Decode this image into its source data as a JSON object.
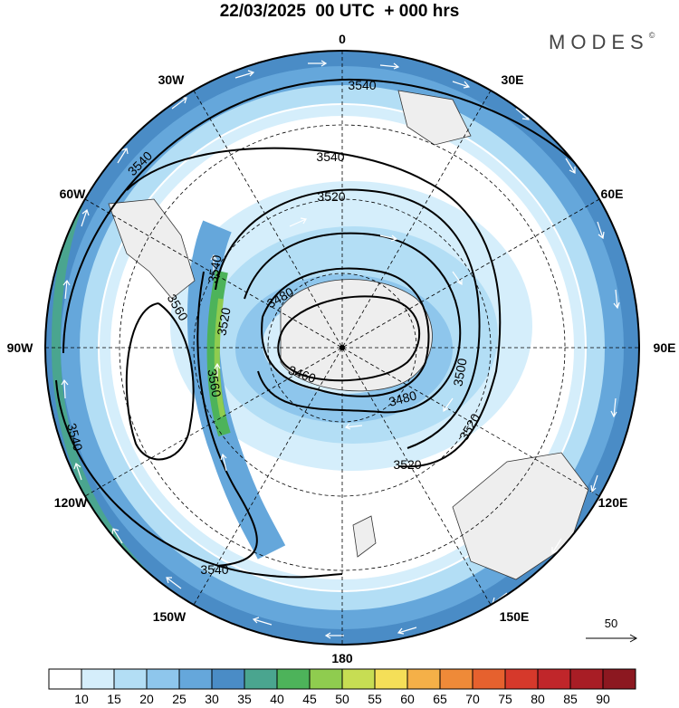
{
  "title": "22/03/2025  00 UTC  + 000 hrs",
  "brand": "MODES",
  "brand_mark": "©",
  "longitude_labels": {
    "top": "0",
    "bottom": "180",
    "left": "90W",
    "right": "90E",
    "l30w": "30W",
    "l60w": "60W",
    "l120w": "120W",
    "l150w": "150W",
    "l30e": "30E",
    "l60e": "60E",
    "l120e": "120E",
    "l150e": "150E"
  },
  "contour_labels": [
    "3540",
    "3540",
    "3540",
    "3520",
    "3540",
    "3560",
    "3520",
    "3480",
    "3560",
    "3460",
    "3480",
    "3500",
    "3520",
    "3520",
    "3540",
    "3540"
  ],
  "reference_vector": "50",
  "colorbar": {
    "ticks": [
      "10",
      "15",
      "20",
      "25",
      "30",
      "35",
      "40",
      "45",
      "50",
      "55",
      "60",
      "65",
      "70",
      "75",
      "80",
      "85",
      "90"
    ],
    "colors": [
      "#ffffff",
      "#d5eefb",
      "#b3def5",
      "#8ec6ec",
      "#65a7db",
      "#4a8cc6",
      "#4aa58f",
      "#4db35a",
      "#8fcc4f",
      "#c7dd53",
      "#f5df58",
      "#f5b048",
      "#ef8a38",
      "#e6612e",
      "#d6392b",
      "#c0262a",
      "#a81d25",
      "#8c1820"
    ]
  }
}
